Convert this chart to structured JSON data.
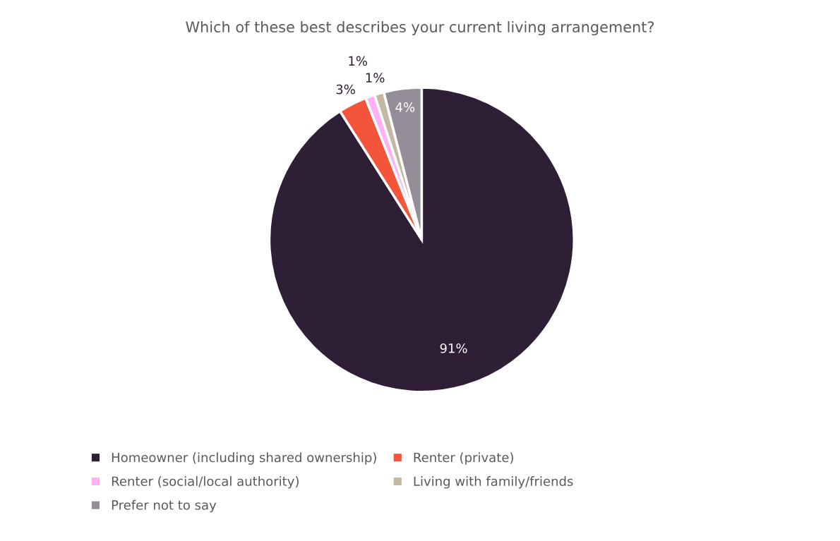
{
  "chart_data": {
    "type": "pie",
    "title": "Which of these best describes your current living arrangement?",
    "categories": [
      "Homeowner (including shared ownership)",
      "Renter (private)",
      "Renter (social/local authority)",
      "Living with family/friends",
      "Prefer not to say"
    ],
    "values": [
      91,
      3,
      1,
      1,
      4
    ],
    "colors": [
      "#2e1f36",
      "#f4553a",
      "#ffb3f5",
      "#c2b8a3",
      "#958e99"
    ],
    "value_labels": [
      "91%",
      "3%",
      "1%",
      "1%",
      "4%"
    ],
    "legend": "bottom"
  }
}
